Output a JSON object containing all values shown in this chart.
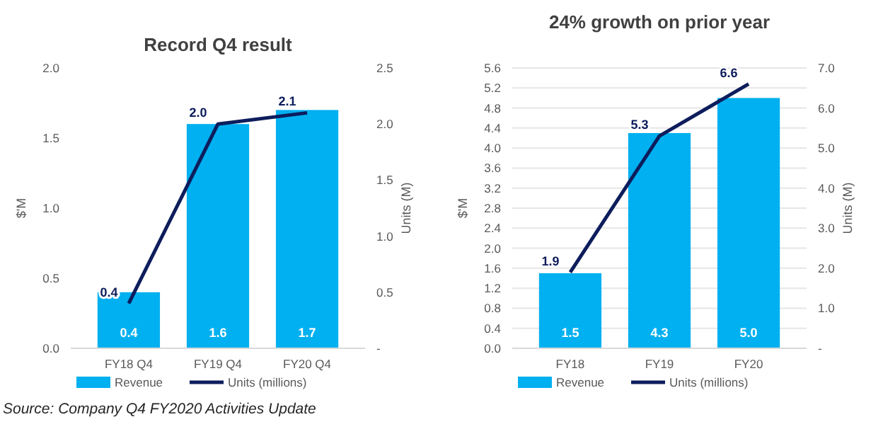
{
  "chart_data": [
    {
      "type": "bar",
      "title": "Record Q4 result",
      "ylabel": "$'M",
      "y2label": "Units (M)",
      "categories": [
        "FY18 Q4",
        "FY19 Q4",
        "FY20 Q4"
      ],
      "series": [
        {
          "name": "Revenue",
          "color": "#00b0f0",
          "values": [
            0.4,
            1.6,
            1.7
          ],
          "value_labels": [
            "0.4",
            "1.6",
            "1.7"
          ]
        },
        {
          "name": "Units (millions)",
          "type": "line",
          "axis": "y2",
          "color": "#0d1d5c",
          "values": [
            0.4,
            2.0,
            2.1
          ],
          "value_labels": [
            "0.4",
            "2.0",
            "2.1"
          ]
        }
      ],
      "ylim": [
        0,
        2.0
      ],
      "yticks": [
        {
          "value": 0,
          "label": "0.0"
        },
        {
          "value": 0.5,
          "label": "0.5"
        },
        {
          "value": 1,
          "label": "1.0"
        },
        {
          "value": 1.5,
          "label": "1.5"
        },
        {
          "value": 2,
          "label": "2.0"
        }
      ],
      "y2lim": [
        0,
        2.5
      ],
      "y2ticks": [
        {
          "value": 0,
          "label": "-"
        },
        {
          "value": 0.5,
          "label": "0.5"
        },
        {
          "value": 1,
          "label": "1.0"
        },
        {
          "value": 1.5,
          "label": "1.5"
        },
        {
          "value": 2,
          "label": "2.0"
        },
        {
          "value": 2.5,
          "label": "2.5"
        }
      ],
      "grid": false,
      "legend": "bottom",
      "marker": "none",
      "annotations": [
        "Source: Company Q4 FY2020 Activities Update"
      ]
    },
    {
      "type": "bar",
      "title": "24% growth on prior year",
      "ylabel": "$'M",
      "y2label": "Units (M)",
      "categories": [
        "FY18",
        "FY19",
        "FY20"
      ],
      "series": [
        {
          "name": "Revenue",
          "color": "#00b0f0",
          "values": [
            1.5,
            4.3,
            5.0
          ],
          "value_labels": [
            "1.5",
            "4.3",
            "5.0"
          ]
        },
        {
          "name": "Units (millions)",
          "type": "line",
          "axis": "y2",
          "color": "#0d1d5c",
          "values": [
            1.9,
            5.3,
            6.6
          ],
          "value_labels": [
            "1.9",
            "5.3",
            "6.6"
          ]
        }
      ],
      "ylim": [
        0,
        5.6
      ],
      "yticks": [
        {
          "value": 0,
          "label": "0.0"
        },
        {
          "value": 0.4,
          "label": "0.4"
        },
        {
          "value": 0.8,
          "label": "0.8"
        },
        {
          "value": 1.2,
          "label": "1.2"
        },
        {
          "value": 1.6,
          "label": "1.6"
        },
        {
          "value": 2.0,
          "label": "2.0"
        },
        {
          "value": 2.4,
          "label": "2.4"
        },
        {
          "value": 2.8,
          "label": "2.8"
        },
        {
          "value": 3.2,
          "label": "3.2"
        },
        {
          "value": 3.6,
          "label": "3.6"
        },
        {
          "value": 4.0,
          "label": "4.0"
        },
        {
          "value": 4.4,
          "label": "4.4"
        },
        {
          "value": 4.8,
          "label": "4.8"
        },
        {
          "value": 5.2,
          "label": "5.2"
        },
        {
          "value": 5.6,
          "label": "5.6"
        }
      ],
      "y2lim": [
        0,
        7.0
      ],
      "y2ticks": [
        {
          "value": 0,
          "label": "-"
        },
        {
          "value": 1,
          "label": "1.0"
        },
        {
          "value": 2,
          "label": "2.0"
        },
        {
          "value": 3,
          "label": "3.0"
        },
        {
          "value": 4,
          "label": "4.0"
        },
        {
          "value": 5,
          "label": "5.0"
        },
        {
          "value": 6,
          "label": "6.0"
        },
        {
          "value": 7,
          "label": "7.0"
        }
      ],
      "grid": "y",
      "legend": "bottom",
      "marker": "none"
    }
  ]
}
